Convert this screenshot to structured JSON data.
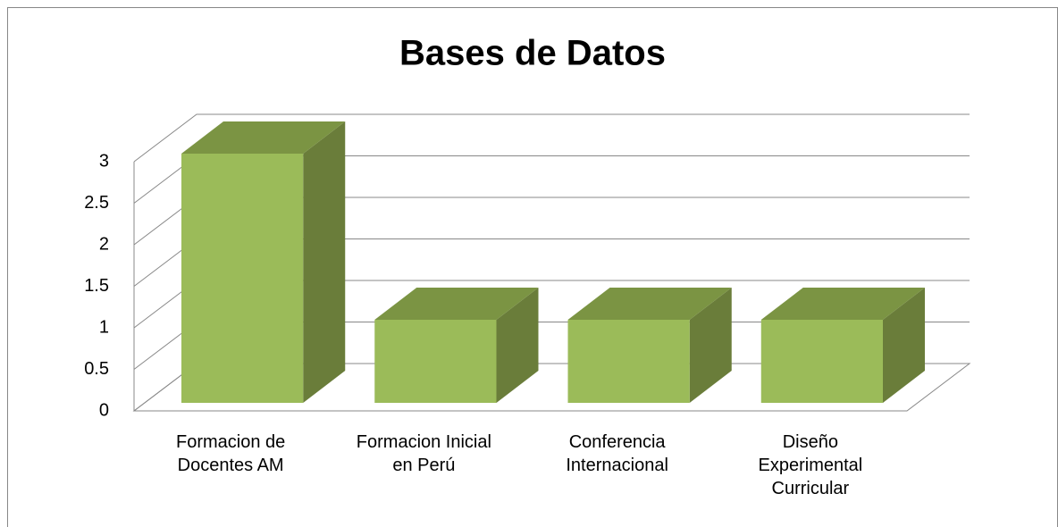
{
  "chart_data": {
    "type": "bar3d",
    "title": "Bases de Datos",
    "categories": [
      "Formacion de Docentes AM",
      "Formacion Inicial en Perú",
      "Conferencia Internacional",
      "Diseño Experimental Curricular"
    ],
    "values": [
      3,
      1,
      1,
      1
    ],
    "color": "#9bbb59",
    "ylim": [
      0,
      3
    ],
    "yticks": [
      0,
      0.5,
      1,
      1.5,
      2,
      2.5,
      3
    ],
    "grid": true
  }
}
